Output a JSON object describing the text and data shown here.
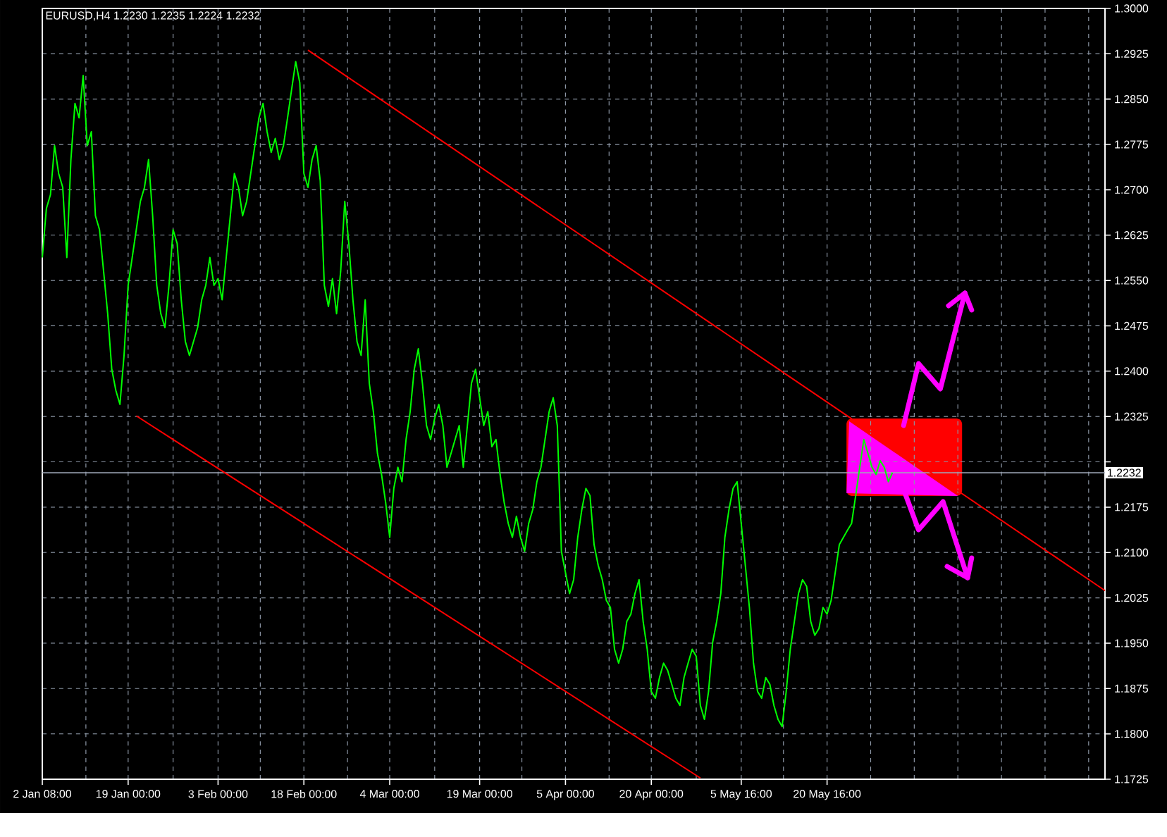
{
  "chart_data": {
    "type": "line",
    "title": "EURUSD,H4  1.2230 1.2235 1.2224 1.2232",
    "categories": [
      "2 Jan 08:00",
      null,
      null,
      null,
      null,
      null,
      null,
      null,
      null,
      null,
      null,
      null,
      null,
      null,
      null,
      null,
      null,
      null,
      null,
      null,
      null,
      "19 Jan 00:00",
      null,
      null,
      null,
      null,
      null,
      null,
      null,
      null,
      null,
      null,
      null,
      null,
      null,
      null,
      null,
      null,
      null,
      null,
      null,
      null,
      null,
      "3 Feb 00:00",
      null,
      null,
      null,
      null,
      null,
      null,
      null,
      null,
      null,
      null,
      null,
      null,
      null,
      null,
      null,
      null,
      null,
      null,
      null,
      null,
      "18 Feb 00:00",
      null,
      null,
      null,
      null,
      null,
      null,
      null,
      null,
      null,
      null,
      null,
      null,
      null,
      null,
      null,
      null,
      null,
      null,
      null,
      null,
      "4 Mar 00:00",
      null,
      null,
      null,
      null,
      null,
      null,
      null,
      null,
      null,
      null,
      null,
      null,
      null,
      null,
      null,
      null,
      null,
      null,
      null,
      null,
      null,
      "19 Mar 00:00",
      null,
      null,
      null,
      null,
      null,
      null,
      null,
      null,
      null,
      null,
      null,
      null,
      null,
      null,
      null,
      null,
      null,
      null,
      null,
      null,
      "5 Apr 00:00",
      null,
      null,
      null,
      null,
      null,
      null,
      null,
      null,
      null,
      null,
      null,
      null,
      null,
      null,
      null,
      null,
      null,
      null,
      null,
      null,
      "20 Apr 00:00",
      null,
      null,
      null,
      null,
      null,
      null,
      null,
      null,
      null,
      null,
      null,
      null,
      null,
      null,
      null,
      null,
      null,
      null,
      null,
      null,
      null,
      "5 May 16:00",
      null,
      null,
      null,
      null,
      null,
      null,
      null,
      null,
      null,
      null,
      null,
      null,
      null,
      null,
      null,
      null,
      null,
      null,
      null,
      null,
      "20 May 16:00",
      null,
      null,
      null,
      null,
      null,
      null,
      null,
      null,
      null,
      null,
      null,
      null,
      null,
      null,
      null,
      null,
      null,
      null,
      null,
      null,
      null,
      null,
      null,
      null,
      null,
      null,
      null,
      null,
      null,
      null,
      null,
      null,
      null,
      null,
      null,
      null,
      null,
      null,
      null,
      null,
      null,
      null,
      null,
      null,
      null,
      null,
      null,
      null,
      null,
      null,
      null,
      null,
      null,
      null,
      null,
      null,
      null,
      null,
      null,
      null,
      null,
      null,
      null,
      null,
      null,
      null,
      null,
      null
    ],
    "ylim": [
      1.1725,
      1.3
    ],
    "yticks": [
      1.1725,
      {
        "value": 1.18,
        "label": "1.1800"
      },
      1.1875,
      {
        "value": 1.195,
        "label": "1.1950"
      },
      1.2025,
      {
        "value": 1.21,
        "label": "1.2100"
      },
      1.2175,
      {
        "value": 1.225,
        "label": null
      },
      1.2325,
      {
        "value": 1.24,
        "label": "1.2400"
      },
      1.2475,
      {
        "value": 1.255,
        "label": "1.2550"
      },
      1.2625,
      {
        "value": 1.27,
        "label": "1.2700"
      },
      1.2775,
      {
        "value": 1.285,
        "label": "1.2850"
      },
      1.2925,
      {
        "value": 1.3,
        "label": "1.3000"
      }
    ],
    "grid": true,
    "marker": "none",
    "line_style": "solid",
    "ref_lines": [
      {
        "axis": "y",
        "value": 1.2232,
        "label": "1.2232",
        "color": "#a0a8b8"
      }
    ],
    "series": [
      {
        "color": "#00ff00",
        "values": [
          1.2588,
          1.2669,
          1.2692,
          1.2773,
          1.2727,
          1.2704,
          1.2588,
          1.275,
          1.2843,
          1.2819,
          1.2889,
          1.2773,
          1.2796,
          1.2657,
          1.2634,
          1.2565,
          1.2495,
          1.2403,
          1.2368,
          1.2345,
          1.2426,
          1.2542,
          1.2588,
          1.2634,
          1.2681,
          1.2704,
          1.275,
          1.2657,
          1.2542,
          1.2495,
          1.2472,
          1.2542,
          1.2634,
          1.2611,
          1.2518,
          1.2449,
          1.2426,
          1.2449,
          1.2472,
          1.2518,
          1.2542,
          1.2588,
          1.2542,
          1.2553,
          1.2518,
          1.2588,
          1.2657,
          1.2727,
          1.2704,
          1.2657,
          1.2681,
          1.2727,
          1.2773,
          1.2819,
          1.2843,
          1.2796,
          1.2762,
          1.2785,
          1.275,
          1.2773,
          1.2819,
          1.2866,
          1.2912,
          1.2877,
          1.2727,
          1.2704,
          1.275,
          1.2773,
          1.2715,
          1.2542,
          1.2507,
          1.2553,
          1.2495,
          1.2565,
          1.2681,
          1.2611,
          1.2518,
          1.2449,
          1.2426,
          1.2518,
          1.238,
          1.2333,
          1.2264,
          1.2229,
          1.2183,
          1.2125,
          1.2206,
          1.2241,
          1.2217,
          1.2287,
          1.2333,
          1.2403,
          1.2437,
          1.238,
          1.231,
          1.2287,
          1.2322,
          1.2345,
          1.231,
          1.2241,
          1.2264,
          1.2287,
          1.231,
          1.2241,
          1.231,
          1.238,
          1.2403,
          1.2356,
          1.231,
          1.2333,
          1.2275,
          1.2287,
          1.2229,
          1.2183,
          1.2148,
          1.2125,
          1.216,
          1.2125,
          1.2102,
          1.2148,
          1.2171,
          1.2217,
          1.2241,
          1.2287,
          1.2333,
          1.2356,
          1.231,
          1.2102,
          1.2067,
          1.2032,
          1.2055,
          1.2125,
          1.2171,
          1.2206,
          1.2194,
          1.2113,
          1.2079,
          1.2055,
          1.2021,
          1.2009,
          1.194,
          1.1917,
          1.194,
          1.1986,
          1.1998,
          1.2032,
          1.2055,
          1.1986,
          1.194,
          1.187,
          1.1859,
          1.1893,
          1.1917,
          1.1905,
          1.1882,
          1.1859,
          1.1847,
          1.1893,
          1.1917,
          1.194,
          1.1928,
          1.1847,
          1.1824,
          1.187,
          1.1951,
          1.1986,
          1.2032,
          1.2125,
          1.2171,
          1.2206,
          1.2217,
          1.2148,
          1.2079,
          1.2009,
          1.1917,
          1.187,
          1.1859,
          1.1893,
          1.1882,
          1.1847,
          1.1824,
          1.1812,
          1.187,
          1.194,
          1.1986,
          1.2032,
          1.2055,
          1.2044,
          1.1986,
          1.1963,
          1.1974,
          1.2009,
          1.1998,
          1.2021,
          1.2067,
          1.2113,
          1.2125,
          1.2137,
          1.2148,
          1.2194,
          1.2241,
          1.2287,
          1.2264,
          1.2241,
          1.2229,
          1.2252,
          1.2241,
          1.2217,
          1.2232,
          null,
          null,
          null,
          null,
          null,
          null,
          null,
          null,
          null,
          null,
          null,
          null,
          null,
          null,
          null,
          null,
          null,
          null,
          null,
          null,
          null,
          null,
          null,
          null,
          null,
          null,
          null,
          null,
          null,
          null,
          null,
          null,
          null,
          null,
          null,
          null,
          null,
          null,
          null,
          null,
          null,
          null,
          null,
          null,
          null,
          null,
          null,
          null,
          null,
          null,
          null,
          null
        ]
      },
      {
        "type": "line",
        "color": "#ff0000",
        "values": [
          null,
          null,
          null,
          null,
          null,
          null,
          null,
          null,
          null,
          null,
          null,
          null,
          null,
          null,
          null,
          null,
          null,
          null,
          null,
          null,
          null,
          null,
          null,
          null,
          null,
          null,
          null,
          null,
          null,
          null,
          null,
          null,
          null,
          null,
          null,
          null,
          null,
          null,
          null,
          null,
          null,
          null,
          null,
          null,
          null,
          null,
          null,
          null,
          null,
          null,
          null,
          null,
          null,
          null,
          null,
          null,
          null,
          null,
          null,
          null,
          null,
          null,
          null,
          null,
          null,
          1.2931,
          null,
          null,
          null,
          null,
          null,
          null,
          null,
          null,
          null,
          null,
          null,
          null,
          null,
          null,
          null,
          null,
          null,
          null,
          null,
          null,
          null,
          null,
          null,
          null,
          null,
          null,
          null,
          null,
          null,
          null,
          null,
          null,
          null,
          null,
          null,
          null,
          null,
          null,
          null,
          null,
          null,
          null,
          null,
          null,
          null,
          null,
          null,
          null,
          null,
          null,
          null,
          null,
          null,
          null,
          null,
          null,
          null,
          null,
          null,
          null,
          null,
          null,
          null,
          null,
          null,
          null,
          null,
          null,
          null,
          null,
          null,
          null,
          null,
          null,
          null,
          null,
          null,
          null,
          null,
          null,
          null,
          null,
          null,
          null,
          null,
          null,
          null,
          null,
          null,
          null,
          null,
          null,
          null,
          null,
          null,
          null,
          null,
          null,
          null,
          null,
          null,
          null,
          null,
          null,
          null,
          null,
          null,
          null,
          null,
          null,
          null,
          null,
          null,
          null,
          null,
          null,
          null,
          null,
          null,
          null,
          null,
          null,
          null,
          null,
          null,
          null,
          null,
          null,
          null,
          null,
          null,
          null,
          null,
          null,
          null,
          null,
          null,
          null,
          null,
          null,
          null,
          null,
          null,
          null,
          null,
          null,
          null,
          null,
          null,
          null,
          null,
          null,
          null,
          null,
          null,
          null,
          null,
          null,
          null,
          null,
          null,
          null,
          null,
          null,
          null,
          null,
          null,
          null,
          null,
          null,
          null,
          null,
          null,
          null,
          null,
          null,
          null,
          null,
          null,
          null,
          null,
          null,
          null,
          null,
          null,
          null,
          null,
          null,
          null,
          null,
          null,
          null,
          null,
          null,
          1.2037
        ]
      },
      {
        "type": "line",
        "color": "#ff0000",
        "values": [
          null,
          null,
          null,
          null,
          null,
          null,
          null,
          null,
          null,
          null,
          null,
          null,
          null,
          null,
          null,
          null,
          null,
          null,
          null,
          null,
          null,
          null,
          null,
          1.2326,
          null,
          null,
          null,
          null,
          null,
          null,
          null,
          null,
          null,
          null,
          null,
          null,
          null,
          null,
          null,
          null,
          null,
          null,
          null,
          null,
          null,
          null,
          null,
          null,
          null,
          null,
          null,
          null,
          null,
          null,
          null,
          null,
          null,
          null,
          null,
          null,
          null,
          null,
          null,
          null,
          null,
          null,
          null,
          null,
          null,
          null,
          null,
          null,
          null,
          null,
          null,
          null,
          null,
          null,
          null,
          null,
          null,
          null,
          null,
          null,
          null,
          null,
          null,
          null,
          null,
          null,
          null,
          null,
          null,
          null,
          null,
          null,
          null,
          null,
          null,
          null,
          null,
          null,
          null,
          null,
          null,
          null,
          null,
          null,
          null,
          null,
          null,
          null,
          null,
          null,
          null,
          null,
          null,
          null,
          null,
          null,
          null,
          null,
          null,
          null,
          null,
          null,
          null,
          null,
          null,
          null,
          null,
          null,
          null,
          null,
          null,
          null,
          null,
          null,
          null,
          null,
          null,
          null,
          null,
          null,
          null,
          null,
          null,
          null,
          null,
          null,
          null,
          null,
          null,
          null,
          null,
          null,
          null,
          null,
          null,
          null,
          null,
          1.1727,
          null,
          null,
          null,
          null,
          null,
          null,
          null,
          null,
          null,
          null,
          null,
          null,
          null,
          null,
          null,
          null,
          null,
          null,
          null,
          null,
          null,
          null,
          null,
          null,
          null,
          null,
          null,
          null,
          null,
          null,
          null,
          null,
          null,
          null,
          null,
          null,
          null,
          null,
          null,
          null,
          null,
          null,
          null,
          null,
          null,
          null,
          null,
          null,
          null,
          null,
          null,
          null,
          null,
          null,
          null,
          null,
          null,
          null,
          null,
          null,
          null,
          null,
          null,
          null,
          null,
          null,
          null,
          null,
          null,
          null,
          null,
          null,
          null,
          null,
          null,
          null,
          null,
          null,
          null,
          null,
          null,
          null,
          null,
          null,
          null,
          null,
          null,
          null,
          null,
          null,
          null,
          null,
          null,
          null,
          null,
          null,
          null,
          null,
          null
        ]
      }
    ]
  }
}
